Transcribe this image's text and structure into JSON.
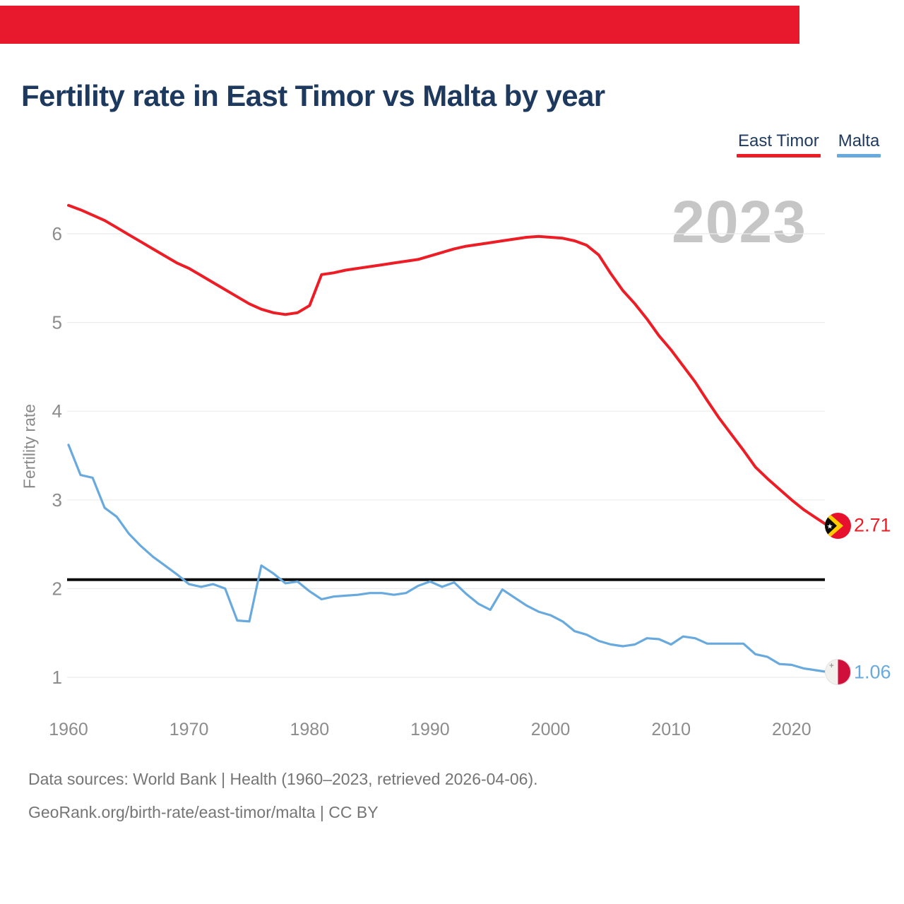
{
  "page": {
    "top_bar_color": "#e8192c"
  },
  "title": "Fertility rate in East Timor vs Malta by year",
  "legend": {
    "items": [
      {
        "label": "East Timor",
        "color": "#ee1c25"
      },
      {
        "label": "Malta",
        "color": "#68a9de"
      }
    ]
  },
  "watermark": "2023",
  "chart_data": {
    "type": "line",
    "title": "Fertility rate in East Timor vs Malta by year",
    "xlabel": "",
    "ylabel": "Fertility rate",
    "grid": true,
    "legend_position": "top-right",
    "ylim": [
      0.75,
      6.45
    ],
    "yticks": [
      1,
      2,
      3,
      4,
      5,
      6
    ],
    "xticks": [
      1960,
      1970,
      1980,
      1990,
      2000,
      2010,
      2020
    ],
    "reference_line": 2.1,
    "x": [
      1960,
      1961,
      1962,
      1963,
      1964,
      1965,
      1966,
      1967,
      1968,
      1969,
      1970,
      1971,
      1972,
      1973,
      1974,
      1975,
      1976,
      1977,
      1978,
      1979,
      1980,
      1981,
      1982,
      1983,
      1984,
      1985,
      1986,
      1987,
      1988,
      1989,
      1990,
      1991,
      1992,
      1993,
      1994,
      1995,
      1996,
      1997,
      1998,
      1999,
      2000,
      2001,
      2002,
      2003,
      2004,
      2005,
      2006,
      2007,
      2008,
      2009,
      2010,
      2011,
      2012,
      2013,
      2014,
      2015,
      2016,
      2017,
      2018,
      2019,
      2020,
      2021,
      2022,
      2023
    ],
    "series": [
      {
        "name": "East Timor",
        "color": "#ee1c25",
        "end_value": 2.71,
        "end_label": "2.71",
        "values": [
          6.32,
          6.27,
          6.21,
          6.15,
          6.07,
          5.99,
          5.91,
          5.83,
          5.75,
          5.67,
          5.61,
          5.53,
          5.45,
          5.37,
          5.29,
          5.21,
          5.15,
          5.11,
          5.09,
          5.11,
          5.19,
          5.54,
          5.56,
          5.59,
          5.61,
          5.63,
          5.65,
          5.67,
          5.69,
          5.71,
          5.75,
          5.79,
          5.83,
          5.86,
          5.88,
          5.9,
          5.92,
          5.94,
          5.96,
          5.97,
          5.96,
          5.95,
          5.92,
          5.87,
          5.76,
          5.55,
          5.36,
          5.21,
          5.04,
          4.85,
          4.69,
          4.51,
          4.33,
          4.12,
          3.92,
          3.74,
          3.56,
          3.37,
          3.24,
          3.12,
          3.0,
          2.89,
          2.8,
          2.71
        ]
      },
      {
        "name": "Malta",
        "color": "#68a9de",
        "end_value": 1.06,
        "end_label": "1.06",
        "values": [
          3.62,
          3.28,
          3.25,
          2.91,
          2.81,
          2.62,
          2.48,
          2.36,
          2.26,
          2.16,
          2.05,
          2.02,
          2.05,
          2.0,
          1.64,
          1.63,
          2.26,
          2.17,
          2.06,
          2.08,
          1.97,
          1.88,
          1.91,
          1.92,
          1.93,
          1.95,
          1.95,
          1.93,
          1.95,
          2.03,
          2.08,
          2.02,
          2.07,
          1.94,
          1.83,
          1.76,
          1.99,
          1.9,
          1.81,
          1.74,
          1.7,
          1.63,
          1.52,
          1.48,
          1.41,
          1.37,
          1.35,
          1.37,
          1.44,
          1.43,
          1.37,
          1.46,
          1.44,
          1.38,
          1.38,
          1.38,
          1.38,
          1.26,
          1.23,
          1.15,
          1.14,
          1.1,
          1.08,
          1.06
        ]
      }
    ]
  },
  "footer": {
    "line1": "Data sources: World Bank | Health (1960–2023, retrieved 2026-04-06).",
    "line2": "GeoRank.org/birth-rate/east-timor/malta | CC BY"
  }
}
